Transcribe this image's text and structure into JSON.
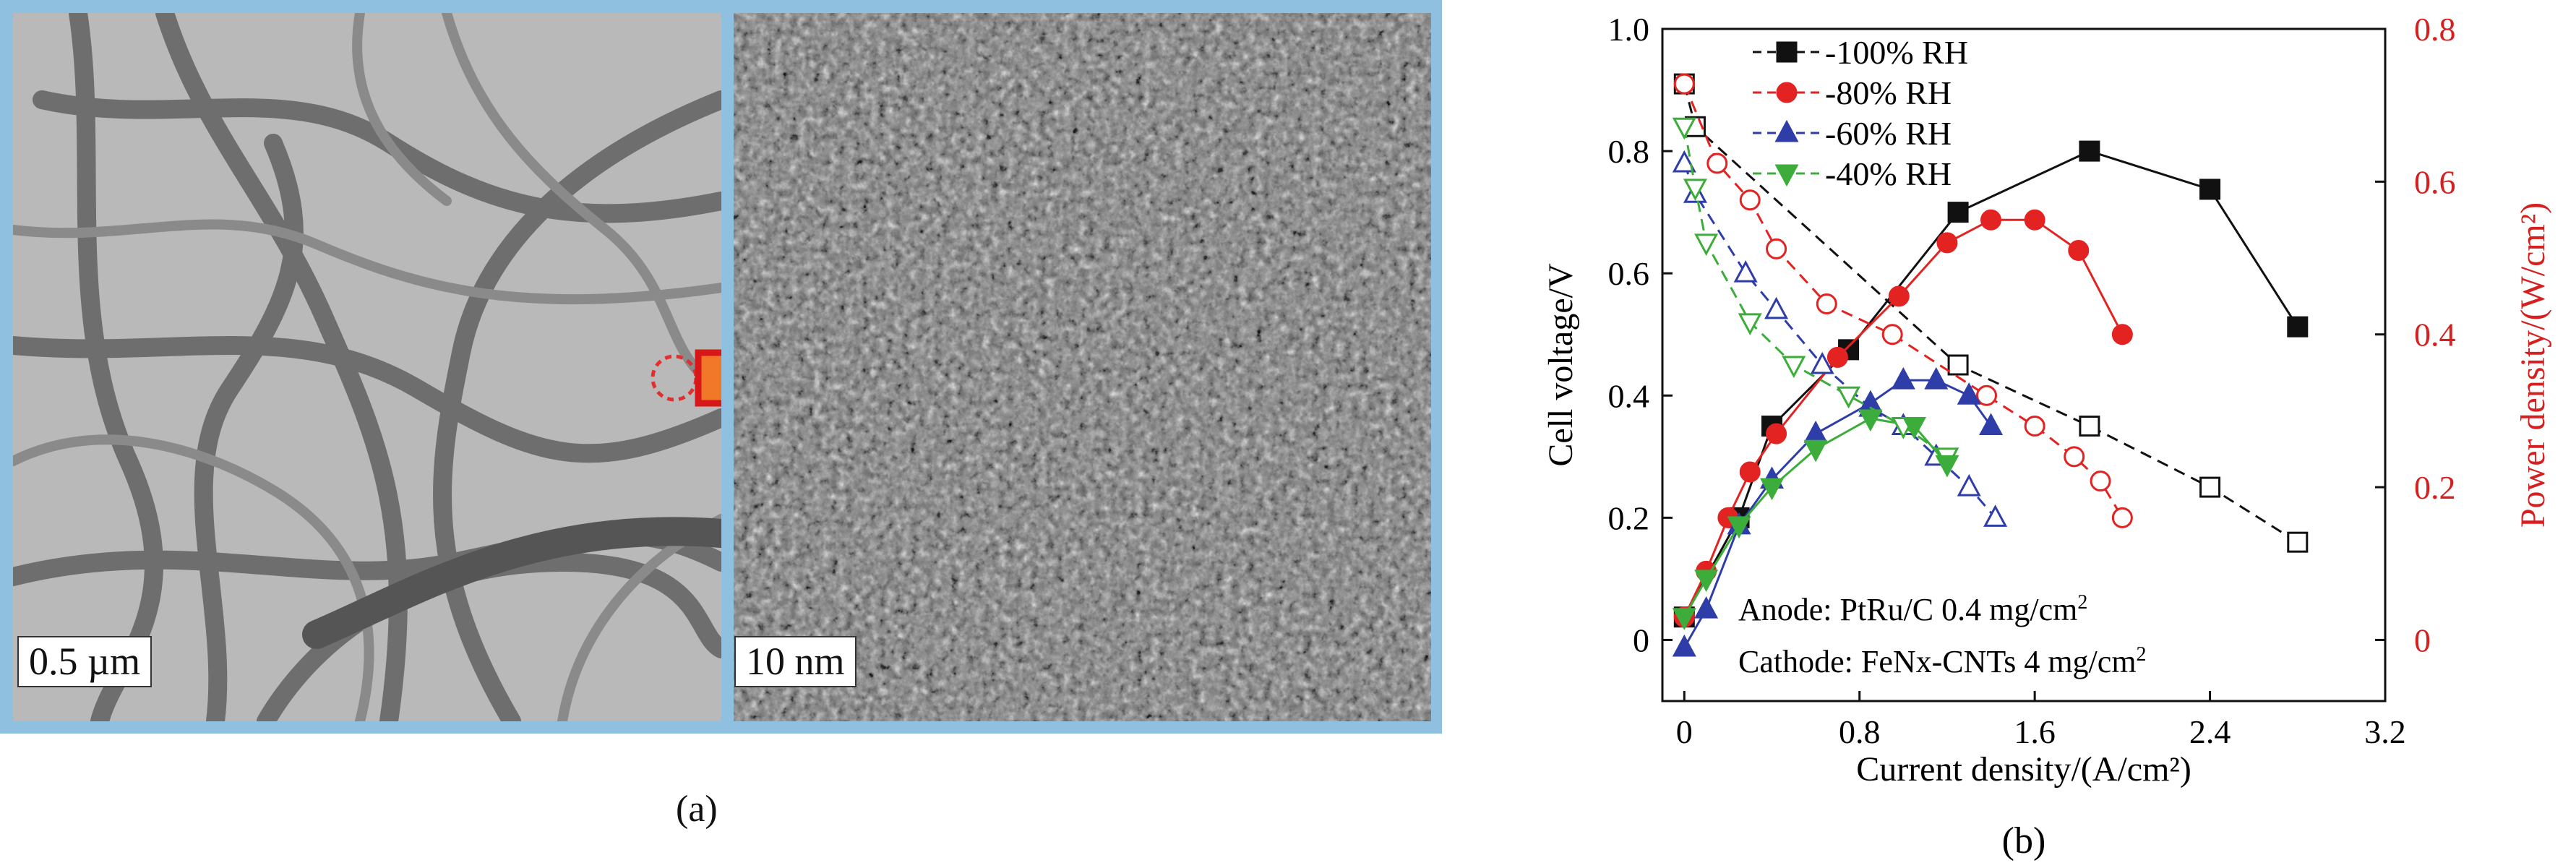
{
  "panel_a": {
    "caption": "(a)",
    "left_image": {
      "scale_label": "0.5 µm"
    },
    "right_image": {
      "scale_label": "10 nm"
    }
  },
  "panel_b": {
    "caption": "(b)",
    "annotations": [
      "Anode: PtRu/C 0.4 mg/cm",
      "Cathode: FeNx-CNTs 4 mg/cm"
    ]
  },
  "colors": {
    "s100": "#111111",
    "s80": "#e32222",
    "s60": "#2f3da8",
    "s40": "#3cad3a",
    "right_axis": "#d62020",
    "frame": "#8fc0e0"
  },
  "chart_data": {
    "type": "line",
    "xlabel": "Current density/(A/cm²)",
    "ylabel": "Cell voltage/V",
    "y2label": "Power density/(W/cm²)",
    "xlim": [
      -0.1,
      3.2
    ],
    "ylim": [
      -0.1,
      1.0
    ],
    "y2lim": [
      -0.08,
      0.8
    ],
    "xticks": [
      "0",
      "0.8",
      "1.6",
      "2.4",
      "3.2"
    ],
    "yticks": [
      "0",
      "0.2",
      "0.4",
      "0.6",
      "0.8",
      "1.0"
    ],
    "y2ticks": [
      "0",
      "0.2",
      "0.4",
      "0.6",
      "0.8"
    ],
    "legend": {
      "position": "top-left"
    },
    "series": [
      {
        "name": "-100% RH",
        "marker": "square",
        "voltage": [
          [
            0.0,
            0.91
          ],
          [
            0.05,
            0.84
          ],
          [
            1.25,
            0.45
          ],
          [
            1.85,
            0.35
          ],
          [
            2.4,
            0.25
          ],
          [
            2.8,
            0.16
          ]
        ],
        "power": [
          [
            0.0,
            0.03
          ],
          [
            0.25,
            0.16
          ],
          [
            0.4,
            0.28
          ],
          [
            0.75,
            0.38
          ],
          [
            1.25,
            0.56
          ],
          [
            1.85,
            0.64
          ],
          [
            2.4,
            0.59
          ],
          [
            2.8,
            0.41
          ]
        ]
      },
      {
        "name": "-80% RH",
        "marker": "circle",
        "voltage": [
          [
            0.0,
            0.91
          ],
          [
            0.15,
            0.78
          ],
          [
            0.3,
            0.72
          ],
          [
            0.42,
            0.64
          ],
          [
            0.65,
            0.55
          ],
          [
            0.95,
            0.5
          ],
          [
            1.38,
            0.4
          ],
          [
            1.6,
            0.35
          ],
          [
            1.78,
            0.3
          ],
          [
            1.9,
            0.26
          ],
          [
            2.0,
            0.2
          ]
        ],
        "power": [
          [
            0.0,
            0.03
          ],
          [
            0.1,
            0.09
          ],
          [
            0.2,
            0.16
          ],
          [
            0.3,
            0.22
          ],
          [
            0.42,
            0.27
          ],
          [
            0.7,
            0.37
          ],
          [
            0.98,
            0.45
          ],
          [
            1.2,
            0.52
          ],
          [
            1.4,
            0.55
          ],
          [
            1.6,
            0.55
          ],
          [
            1.8,
            0.51
          ],
          [
            2.0,
            0.4
          ]
        ]
      },
      {
        "name": "-60% RH",
        "marker": "triangle-up",
        "voltage": [
          [
            0.0,
            0.78
          ],
          [
            0.05,
            0.73
          ],
          [
            0.28,
            0.6
          ],
          [
            0.42,
            0.54
          ],
          [
            0.63,
            0.45
          ],
          [
            0.85,
            0.38
          ],
          [
            1.0,
            0.35
          ],
          [
            1.15,
            0.3
          ],
          [
            1.3,
            0.25
          ],
          [
            1.42,
            0.2
          ]
        ],
        "power": [
          [
            0.0,
            -0.01
          ],
          [
            0.1,
            0.04
          ],
          [
            0.25,
            0.15
          ],
          [
            0.4,
            0.21
          ],
          [
            0.6,
            0.27
          ],
          [
            0.85,
            0.31
          ],
          [
            1.0,
            0.34
          ],
          [
            1.15,
            0.34
          ],
          [
            1.3,
            0.32
          ],
          [
            1.4,
            0.28
          ]
        ]
      },
      {
        "name": "-40% RH",
        "marker": "triangle-down",
        "voltage": [
          [
            0.0,
            0.84
          ],
          [
            0.05,
            0.74
          ],
          [
            0.1,
            0.65
          ],
          [
            0.3,
            0.52
          ],
          [
            0.5,
            0.45
          ],
          [
            0.75,
            0.4
          ],
          [
            1.0,
            0.35
          ],
          [
            1.2,
            0.3
          ]
        ],
        "power": [
          [
            0.0,
            0.03
          ],
          [
            0.1,
            0.08
          ],
          [
            0.25,
            0.15
          ],
          [
            0.4,
            0.2
          ],
          [
            0.6,
            0.25
          ],
          [
            0.85,
            0.29
          ],
          [
            1.05,
            0.28
          ],
          [
            1.2,
            0.23
          ]
        ]
      }
    ]
  }
}
